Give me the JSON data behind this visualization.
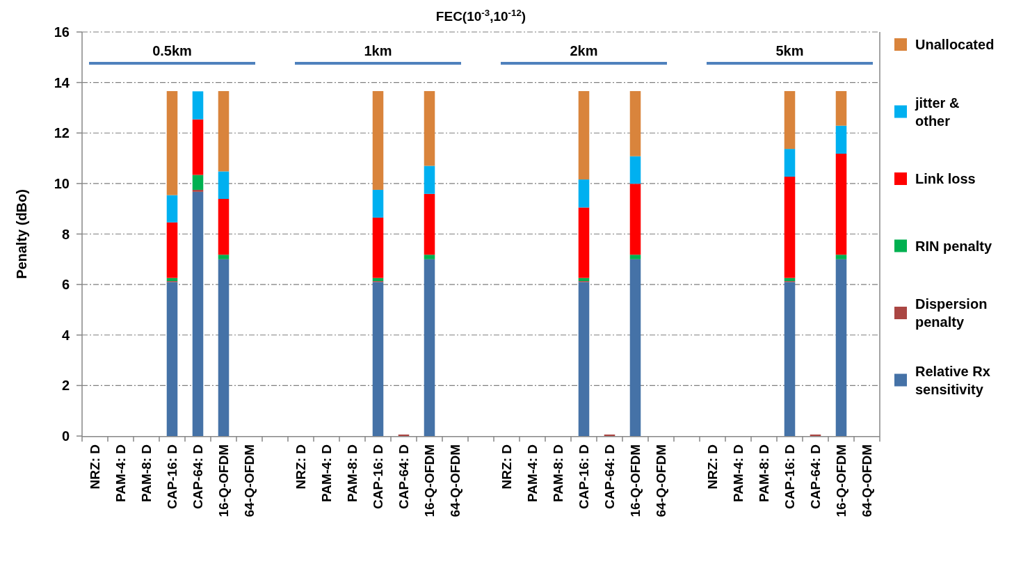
{
  "chart_data": {
    "type": "bar",
    "stacked": true,
    "title": "FEC(10$^{-3}$,10$^{-12}$)",
    "ylabel": "Penalty (dBo)",
    "categories": [
      "NRZ: D",
      "PAM-4: D",
      "PAM-8: D",
      "CAP-16: D",
      "CAP-64: D",
      "16-Q-OFDM",
      "64-Q-OFDM",
      null,
      "NRZ: D",
      "PAM-4: D",
      "PAM-8: D",
      "CAP-16: D",
      "CAP-64: D",
      "16-Q-OFDM",
      "64-Q-OFDM",
      null,
      "NRZ: D",
      "PAM-4: D",
      "PAM-8: D",
      "CAP-16: D",
      "CAP-64: D",
      "16-Q-OFDM",
      "64-Q-OFDM",
      null,
      "NRZ: D",
      "PAM-4: D",
      "PAM-8: D",
      "CAP-16: D",
      "CAP-64: D",
      "16-Q-OFDM",
      "64-Q-OFDM"
    ],
    "series": [
      {
        "name": "Relative Rx sensitivity",
        "color": "#4572a7",
        "values": [
          null,
          null,
          null,
          6.1,
          9.67,
          7.0,
          null,
          null,
          null,
          null,
          null,
          6.1,
          null,
          7.0,
          null,
          null,
          null,
          null,
          null,
          6.1,
          null,
          7.0,
          null,
          null,
          null,
          null,
          null,
          6.1,
          null,
          7.0,
          null
        ]
      },
      {
        "name": "Dispersion penalty",
        "color": "#aa4643",
        "values": [
          null,
          null,
          null,
          0.04,
          0.08,
          null,
          null,
          null,
          null,
          null,
          null,
          0.04,
          0.06,
          null,
          null,
          null,
          null,
          null,
          null,
          0.04,
          0.06,
          null,
          null,
          null,
          null,
          null,
          null,
          0.04,
          0.06,
          null,
          null
        ]
      },
      {
        "name": "RIN penalty",
        "color": "#00b050",
        "values": [
          null,
          null,
          null,
          0.12,
          0.59,
          0.18,
          null,
          null,
          null,
          null,
          null,
          0.12,
          null,
          0.18,
          null,
          null,
          null,
          null,
          null,
          0.12,
          null,
          0.18,
          null,
          null,
          null,
          null,
          null,
          0.12,
          null,
          0.18,
          null
        ]
      },
      {
        "name": "Link loss",
        "color": "#ff0000",
        "values": [
          null,
          null,
          null,
          2.2,
          2.2,
          2.21,
          null,
          null,
          null,
          null,
          null,
          2.39,
          null,
          2.41,
          null,
          null,
          null,
          null,
          null,
          2.79,
          null,
          2.81,
          null,
          null,
          null,
          null,
          null,
          4.01,
          null,
          4.0,
          null
        ]
      },
      {
        "name": "jitter & other",
        "color": "#00b0f0",
        "values": [
          null,
          null,
          null,
          1.08,
          1.11,
          1.09,
          null,
          null,
          null,
          null,
          null,
          1.1,
          null,
          1.11,
          null,
          null,
          null,
          null,
          null,
          1.11,
          null,
          1.09,
          null,
          null,
          null,
          null,
          null,
          1.1,
          null,
          1.11,
          null
        ]
      },
      {
        "name": "Unallocated",
        "color": "#d9843c",
        "values": [
          null,
          null,
          null,
          4.12,
          null,
          3.18,
          null,
          null,
          null,
          null,
          null,
          3.91,
          null,
          2.96,
          null,
          null,
          null,
          null,
          null,
          3.5,
          null,
          2.58,
          null,
          null,
          null,
          null,
          null,
          2.29,
          null,
          1.37,
          null
        ]
      }
    ],
    "ylim": [
      0,
      16
    ],
    "yticks": [
      0,
      2,
      4,
      6,
      8,
      10,
      12,
      14,
      16
    ],
    "grid": "y",
    "legend": "right",
    "annotations": [
      "0.5km",
      "1km",
      "2km",
      "5km"
    ]
  }
}
